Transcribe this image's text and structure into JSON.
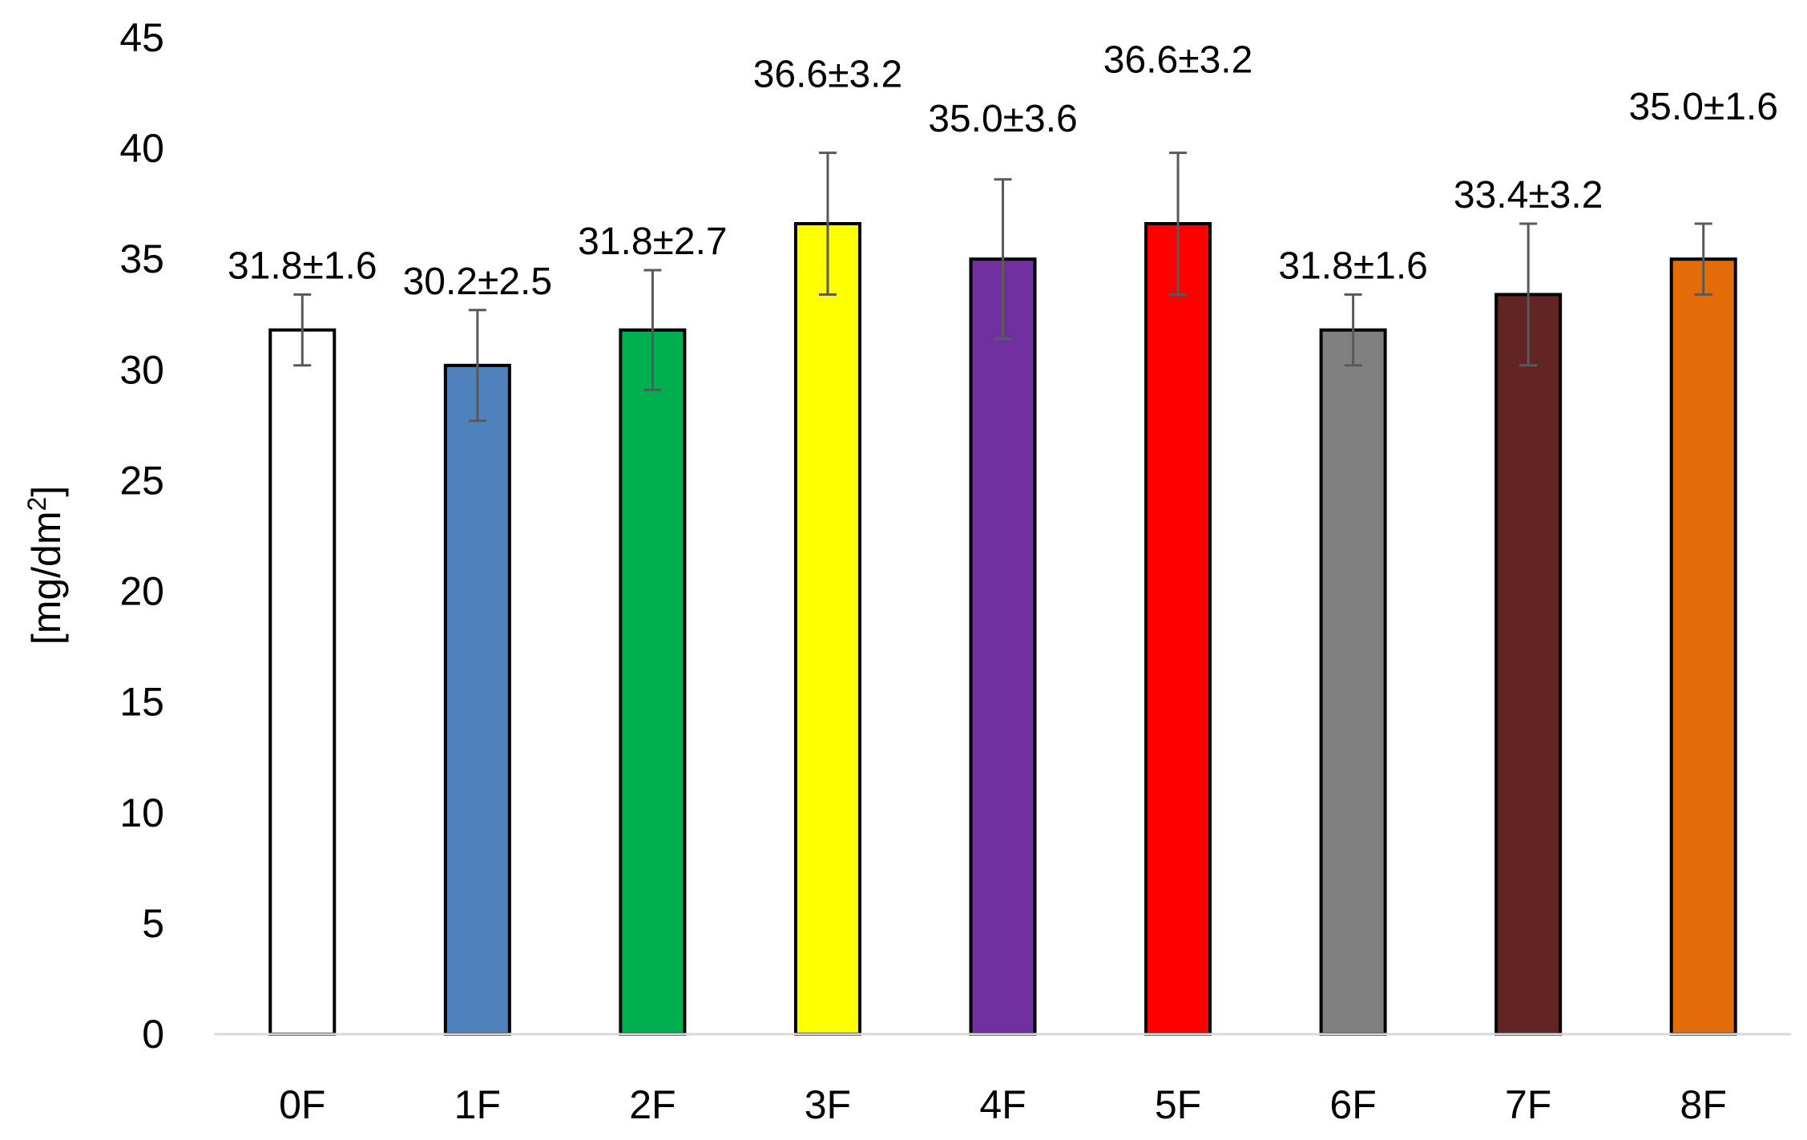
{
  "chart_data": {
    "type": "bar",
    "categories": [
      "0F",
      "1F",
      "2F",
      "3F",
      "4F",
      "5F",
      "6F",
      "7F",
      "8F"
    ],
    "values": [
      31.8,
      30.2,
      31.8,
      36.6,
      35.0,
      36.6,
      31.8,
      33.4,
      35.0
    ],
    "errors": [
      1.6,
      2.5,
      2.7,
      3.2,
      3.6,
      3.2,
      1.6,
      3.2,
      1.6
    ],
    "data_labels": [
      "31.8±1.6",
      "30.2±2.5",
      "31.8±2.7",
      "36.6±3.2",
      "35.0±3.6",
      "36.6±3.2",
      "31.8±1.6",
      "33.4±3.2",
      "35.0±1.6"
    ],
    "colors": [
      "#ffffff",
      "#4f81bd",
      "#00b050",
      "#ffff00",
      "#7030a0",
      "#ff0000",
      "#808080",
      "#632523",
      "#e36c09"
    ],
    "ylabel": "[mg/dm",
    "ylabel_superscript": "2",
    "ylabel_suffix": "]",
    "ylim": [
      0,
      45
    ],
    "yticks": [
      "0",
      "5",
      "10",
      "15",
      "20",
      "25",
      "30",
      "35",
      "40",
      "45"
    ],
    "grid": false,
    "legend": "none"
  }
}
